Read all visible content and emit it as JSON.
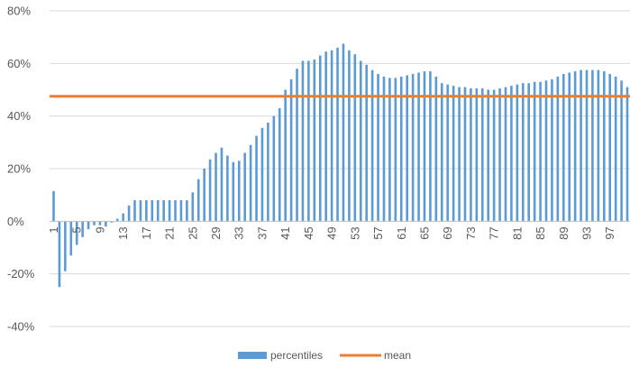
{
  "chart_data": {
    "type": "bar",
    "x": [
      1,
      2,
      3,
      4,
      5,
      6,
      7,
      8,
      9,
      10,
      11,
      12,
      13,
      14,
      15,
      16,
      17,
      18,
      19,
      20,
      21,
      22,
      23,
      24,
      25,
      26,
      27,
      28,
      29,
      30,
      31,
      32,
      33,
      34,
      35,
      36,
      37,
      38,
      39,
      40,
      41,
      42,
      43,
      44,
      45,
      46,
      47,
      48,
      49,
      50,
      51,
      52,
      53,
      54,
      55,
      56,
      57,
      58,
      59,
      60,
      61,
      62,
      63,
      64,
      65,
      66,
      67,
      68,
      69,
      70,
      71,
      72,
      73,
      74,
      75,
      76,
      77,
      78,
      79,
      80,
      81,
      82,
      83,
      84,
      85,
      86,
      87,
      88,
      89,
      90,
      91,
      92,
      93,
      94,
      95,
      96,
      97,
      98,
      99,
      100
    ],
    "x_tick_labels": [
      "1",
      "5",
      "9",
      "13",
      "17",
      "21",
      "25",
      "29",
      "33",
      "37",
      "41",
      "45",
      "49",
      "53",
      "57",
      "61",
      "65",
      "69",
      "73",
      "77",
      "81",
      "85",
      "89",
      "93",
      "97"
    ],
    "series": [
      {
        "name": "percentiles",
        "type": "bar",
        "color": "#5B9BD5",
        "values": [
          11.5,
          -25,
          -19,
          -13,
          -9,
          -6,
          -3,
          -1.5,
          -1.5,
          -2,
          -0.5,
          1,
          3,
          6,
          8,
          8,
          8,
          8,
          8,
          8,
          8,
          8,
          8,
          8,
          11,
          16,
          20,
          23.5,
          26,
          28,
          25,
          22.5,
          23,
          26,
          29,
          32.5,
          35.5,
          37.5,
          40,
          43,
          50,
          54,
          58,
          61,
          61,
          61.5,
          63,
          64.5,
          65,
          66,
          67.5,
          65,
          63.5,
          61,
          59.5,
          57.5,
          56,
          55,
          54.5,
          54.5,
          55,
          55.5,
          56,
          56.5,
          57,
          57,
          55,
          52.5,
          52,
          51.5,
          51,
          51,
          50.5,
          50.5,
          50.5,
          50,
          50,
          50.5,
          51,
          51.5,
          52,
          52.5,
          52.5,
          53,
          53,
          53.5,
          54,
          55,
          56,
          56.5,
          57,
          57.5,
          57.5,
          57.5,
          57.5,
          57,
          56,
          55,
          53.5,
          51
        ]
      },
      {
        "name": "mean",
        "type": "line",
        "color": "#ED7D31",
        "value": 47.5
      }
    ],
    "y_ticks": [
      "80%",
      "60%",
      "40%",
      "20%",
      "0%",
      "-20%",
      "-40%"
    ],
    "y_tick_values": [
      80,
      60,
      40,
      20,
      0,
      -20,
      -40
    ],
    "ylim": [
      -40,
      80
    ],
    "xlim": [
      1,
      100
    ],
    "grid": true,
    "legend_position": "bottom",
    "title": "",
    "xlabel": "",
    "ylabel": ""
  },
  "legend": {
    "percentiles_label": "percentiles",
    "mean_label": "mean"
  }
}
